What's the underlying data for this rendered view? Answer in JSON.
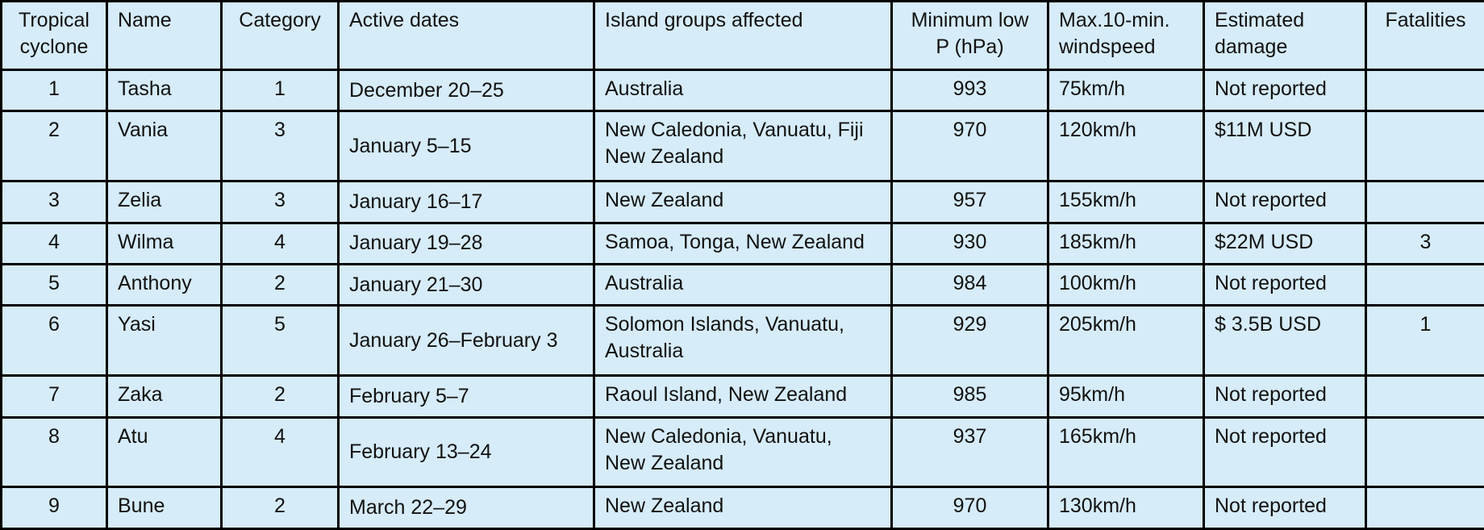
{
  "table": {
    "header": [
      "Tropical cyclone",
      "Name",
      "Category",
      "Active dates",
      "Island groups affected",
      "Minimum low P (hPa)",
      "Max.10-min. windspeed",
      "Estimated damage",
      "Fatalities"
    ],
    "rows": [
      [
        1,
        "Tasha",
        1,
        "December 20–25",
        "Australia",
        993,
        "75km/h",
        "Not reported",
        null
      ],
      [
        2,
        "Vania",
        3,
        "January 5–15",
        "New Caledonia, Vanuatu, Fiji\nNew Zealand",
        970,
        "120km/h",
        "$11M USD",
        null
      ],
      [
        3,
        "Zelia",
        3,
        "January 16–17",
        "New Zealand",
        957,
        "155km/h",
        "Not reported",
        null
      ],
      [
        4,
        "Wilma",
        4,
        "January 19–28",
        "Samoa, Tonga, New Zealand",
        930,
        "185km/h",
        "$22M USD",
        3
      ],
      [
        5,
        "Anthony",
        2,
        "January 21–30",
        "Australia",
        984,
        "100km/h",
        "Not reported",
        null
      ],
      [
        6,
        "Yasi",
        5,
        "January 26–February 3",
        "Solomon Islands, Vanuatu,\nAustralia",
        929,
        "205km/h",
        "$ 3.5B USD",
        1
      ],
      [
        7,
        "Zaka",
        2,
        "February 5–7",
        "Raoul Island, New Zealand",
        985,
        "95km/h",
        "Not reported",
        null
      ],
      [
        8,
        "Atu",
        4,
        "February 13–24",
        "New Caledonia, Vanuatu,\nNew Zealand",
        937,
        "165km/h",
        "Not reported",
        null
      ],
      [
        9,
        "Bune",
        2,
        "March 22–29",
        "New Zealand",
        970,
        "130km/h",
        "Not reported",
        null
      ]
    ]
  }
}
